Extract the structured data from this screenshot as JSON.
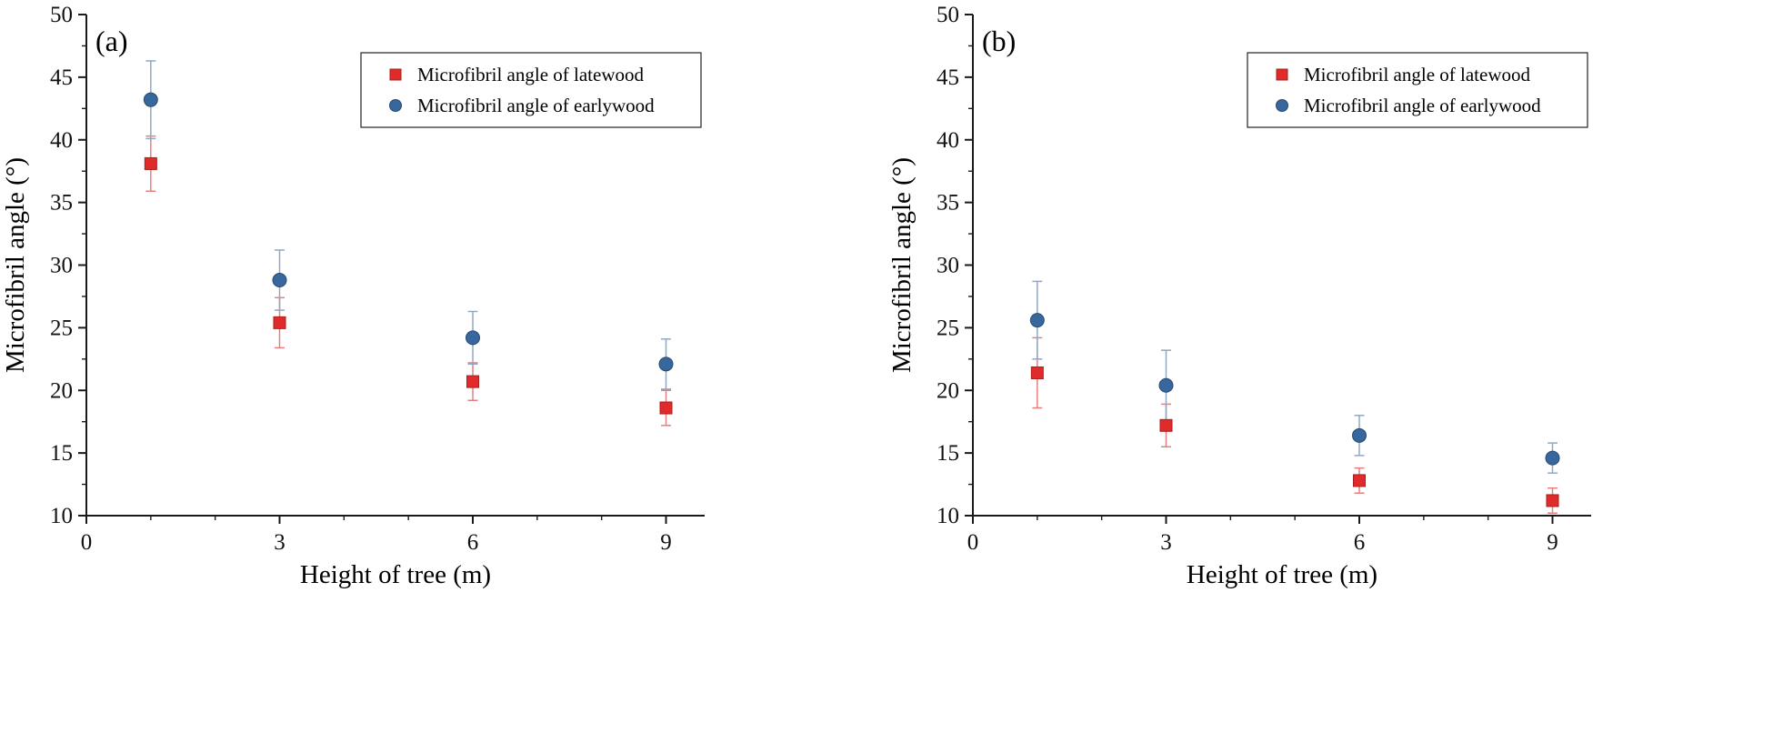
{
  "figure": {
    "background": "#ffffff",
    "panel_labels": [
      "(a)",
      "(b)"
    ]
  },
  "chart_data": [
    {
      "type": "scatter",
      "panel_label": "(a)",
      "title": "",
      "xlabel": "Height of tree (m)",
      "ylabel": "Microfibril angle (°)",
      "xlim": [
        0,
        9.6
      ],
      "ylim": [
        10,
        50
      ],
      "xticks": [
        0,
        3,
        6,
        9
      ],
      "yticks": [
        10,
        15,
        20,
        25,
        30,
        35,
        40,
        45,
        50
      ],
      "grid": false,
      "legend_position": "top-right",
      "x": [
        1,
        3,
        6,
        9
      ],
      "series": [
        {
          "name": "Microfibril angle of latewood",
          "marker": "square",
          "color": "#e02b2b",
          "marker_edge": "#a81d1d",
          "error_color": "#e4807f",
          "values": [
            38.1,
            25.4,
            20.7,
            18.6
          ],
          "errors": [
            2.2,
            2.0,
            1.5,
            1.4
          ]
        },
        {
          "name": "Microfibril angle of earlywood",
          "marker": "circle",
          "color": "#38679e",
          "marker_edge": "#27496f",
          "error_color": "#90a8c4",
          "values": [
            43.2,
            28.8,
            24.2,
            22.1
          ],
          "errors": [
            3.1,
            2.4,
            2.1,
            2.0
          ]
        }
      ]
    },
    {
      "type": "scatter",
      "panel_label": "(b)",
      "title": "",
      "xlabel": "Height of tree (m)",
      "ylabel": "Microfibril angle (°)",
      "xlim": [
        0,
        9.6
      ],
      "ylim": [
        10,
        50
      ],
      "xticks": [
        0,
        3,
        6,
        9
      ],
      "yticks": [
        10,
        15,
        20,
        25,
        30,
        35,
        40,
        45,
        50
      ],
      "grid": false,
      "legend_position": "top-right",
      "x": [
        1,
        3,
        6,
        9
      ],
      "series": [
        {
          "name": "Microfibril angle of latewood",
          "marker": "square",
          "color": "#e02b2b",
          "marker_edge": "#a81d1d",
          "error_color": "#e4807f",
          "values": [
            21.4,
            17.2,
            12.8,
            11.2
          ],
          "errors": [
            2.8,
            1.7,
            1.0,
            1.0
          ]
        },
        {
          "name": "Microfibril angle of earlywood",
          "marker": "circle",
          "color": "#38679e",
          "marker_edge": "#27496f",
          "error_color": "#90a8c4",
          "values": [
            25.6,
            20.4,
            16.4,
            14.6
          ],
          "errors": [
            3.1,
            2.8,
            1.6,
            1.2
          ]
        }
      ]
    }
  ]
}
